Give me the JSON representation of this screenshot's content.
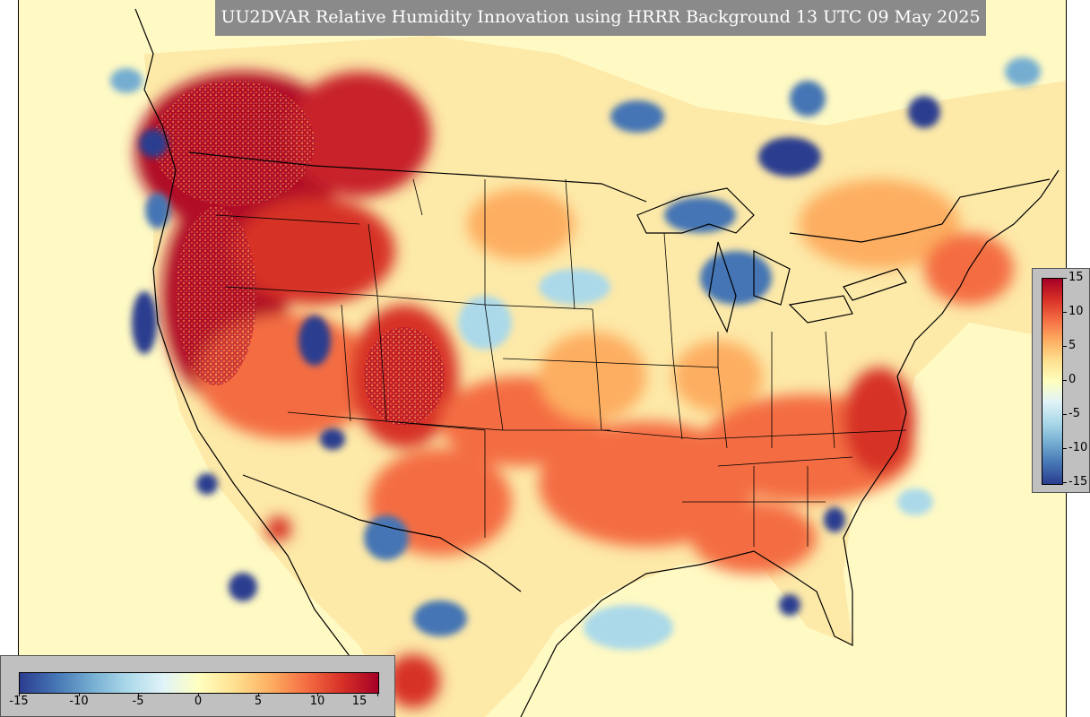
{
  "map": {
    "title": "UU2DVAR Relative Humidity Innovation using HRRR Background 13 UTC 09 May 2025",
    "background_color": "#fff9c4",
    "colormap": [
      "#2b3d8f",
      "#4575b4",
      "#74add1",
      "#abd9e9",
      "#e0f3f8",
      "#ffffbf",
      "#fee090",
      "#fdae61",
      "#f46d43",
      "#d73027",
      "#a50026"
    ]
  },
  "colorbar_vertical": {
    "tick_labels": [
      "15",
      "10",
      "5",
      "0",
      "-5",
      "-10",
      "-15"
    ]
  },
  "colorbar_horizontal": {
    "tick_labels": [
      "-15",
      "-10",
      "-5",
      "0",
      "5",
      "10",
      "15"
    ]
  }
}
